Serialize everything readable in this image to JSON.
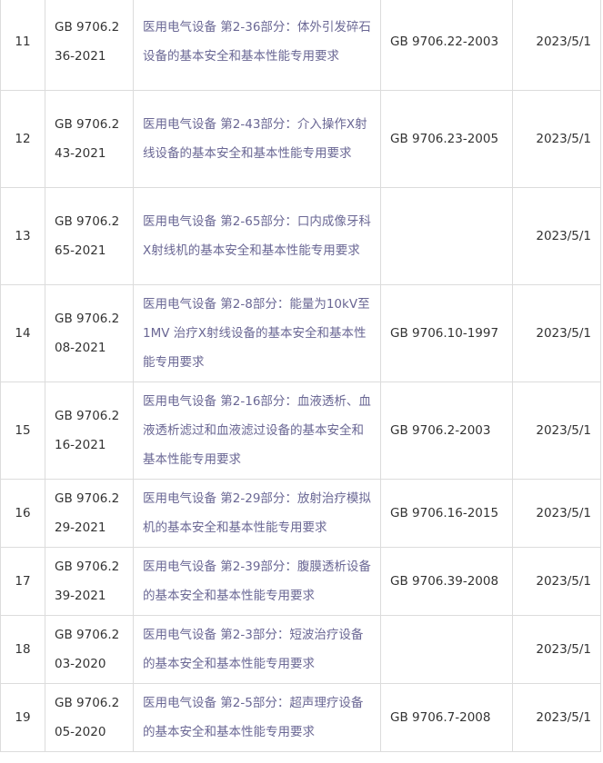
{
  "table": {
    "rows": [
      {
        "no": "11",
        "code": "GB 9706.236-2021",
        "title": "医用电气设备 第2-36部分：体外引发碎石设备的基本安全和基本性能专用要求",
        "replaces": "GB 9706.22-2003",
        "date": "2023/5/1"
      },
      {
        "no": "12",
        "code": "GB 9706.243-2021",
        "title": "医用电气设备 第2-43部分：介入操作X射线设备的基本安全和基本性能专用要求",
        "replaces": "GB 9706.23-2005",
        "date": "2023/5/1"
      },
      {
        "no": "13",
        "code": "GB 9706.265-2021",
        "title": "医用电气设备 第2-65部分：口内成像牙科X射线机的基本安全和基本性能专用要求",
        "replaces": "",
        "date": "2023/5/1"
      },
      {
        "no": "14",
        "code": "GB 9706.208-2021",
        "title": "医用电气设备 第2-8部分：能量为10kV至1MV 治疗X射线设备的基本安全和基本性能专用要求",
        "replaces": "GB 9706.10-1997",
        "date": "2023/5/1"
      },
      {
        "no": "15",
        "code": "GB 9706.216-2021",
        "title": "医用电气设备 第2-16部分：血液透析、血液透析滤过和血液滤过设备的基本安全和基本性能专用要求",
        "replaces": "GB 9706.2-2003",
        "date": "2023/5/1"
      },
      {
        "no": "16",
        "code": "GB 9706.229-2021",
        "title": "医用电气设备 第2-29部分：放射治疗模拟机的基本安全和基本性能专用要求",
        "replaces": "GB 9706.16-2015",
        "date": "2023/5/1"
      },
      {
        "no": "17",
        "code": "GB 9706.239-2021",
        "title": "医用电气设备 第2-39部分：腹膜透析设备的基本安全和基本性能专用要求",
        "replaces": "GB 9706.39-2008",
        "date": "2023/5/1"
      },
      {
        "no": "18",
        "code": "GB 9706.203-2020",
        "title": "医用电气设备 第2-3部分：短波治疗设备的基本安全和基本性能专用要求",
        "replaces": "",
        "date": "2023/5/1"
      },
      {
        "no": "19",
        "code": "GB 9706.205-2020",
        "title": "医用电气设备 第2-5部分：超声理疗设备的基本安全和基本性能专用要求",
        "replaces": "GB 9706.7-2008",
        "date": "2023/5/1"
      }
    ]
  }
}
